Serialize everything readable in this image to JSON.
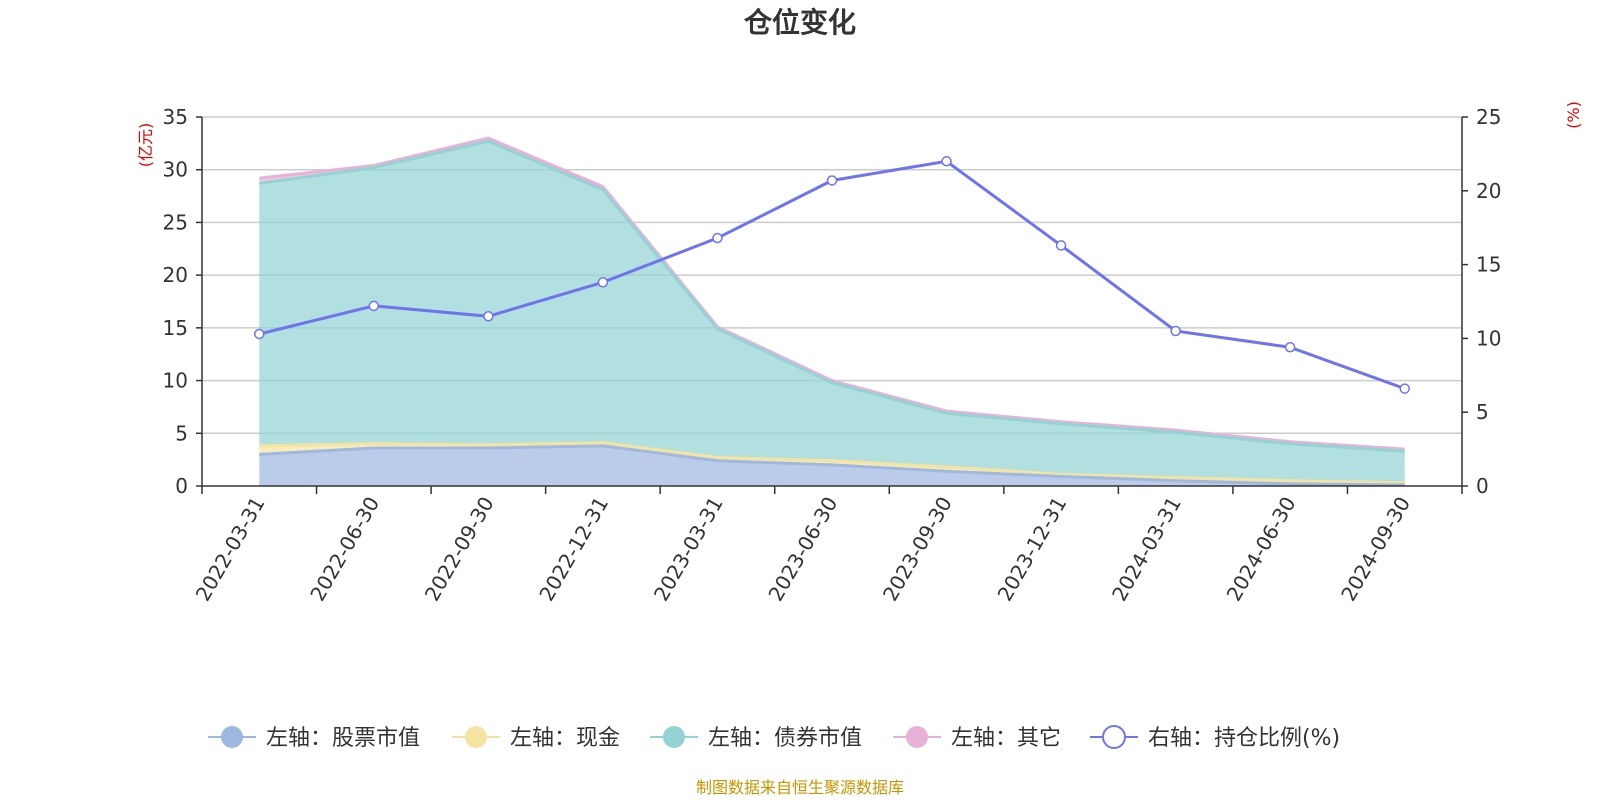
{
  "chart_data": {
    "type": "area",
    "title": "仓位变化",
    "categories": [
      "2022-03-31",
      "2022-06-30",
      "2022-09-30",
      "2022-12-31",
      "2023-03-31",
      "2023-06-30",
      "2023-09-30",
      "2023-12-31",
      "2024-03-31",
      "2024-06-30",
      "2024-09-30"
    ],
    "left_axis": {
      "unit_label": "(亿元)",
      "ylim": [
        0,
        35
      ],
      "ticks": [
        "0",
        "5",
        "10",
        "15",
        "20",
        "25",
        "30",
        "35"
      ]
    },
    "right_axis": {
      "unit_label": "(%)",
      "ylim": [
        0,
        25
      ],
      "ticks": [
        "0",
        "5",
        "10",
        "15",
        "20",
        "25"
      ]
    },
    "series": [
      {
        "name": "左轴：股票市值",
        "axis": "left",
        "kind": "stacked-area",
        "color": "#9fb8e0",
        "values": [
          3.0,
          3.6,
          3.6,
          3.8,
          2.4,
          2.0,
          1.4,
          0.9,
          0.5,
          0.2,
          0.1
        ]
      },
      {
        "name": "左轴：现金",
        "axis": "left",
        "kind": "stacked-area",
        "color": "#f5e3a2",
        "values": [
          0.8,
          0.4,
          0.3,
          0.3,
          0.3,
          0.4,
          0.4,
          0.2,
          0.3,
          0.3,
          0.2
        ]
      },
      {
        "name": "左轴：债券市值",
        "axis": "left",
        "kind": "stacked-area",
        "color": "#94d3d3",
        "values": [
          24.9,
          26.2,
          28.8,
          24.0,
          12.2,
          7.4,
          5.1,
          4.8,
          4.3,
          3.5,
          3.0
        ]
      },
      {
        "name": "左轴：其它",
        "axis": "left",
        "kind": "stacked-area",
        "color": "#e8b1d8",
        "values": [
          0.5,
          0.2,
          0.3,
          0.3,
          0.2,
          0.2,
          0.2,
          0.2,
          0.2,
          0.2,
          0.2
        ]
      },
      {
        "name": "右轴：持仓比例(%)",
        "axis": "right",
        "kind": "line",
        "color": "#7073ee",
        "values": [
          10.3,
          12.2,
          11.5,
          13.8,
          16.8,
          20.7,
          22.0,
          16.3,
          10.5,
          9.4,
          6.6
        ]
      }
    ],
    "grid": true,
    "legend_position": "bottom"
  },
  "source": "制图数据来自恒生聚源数据库"
}
